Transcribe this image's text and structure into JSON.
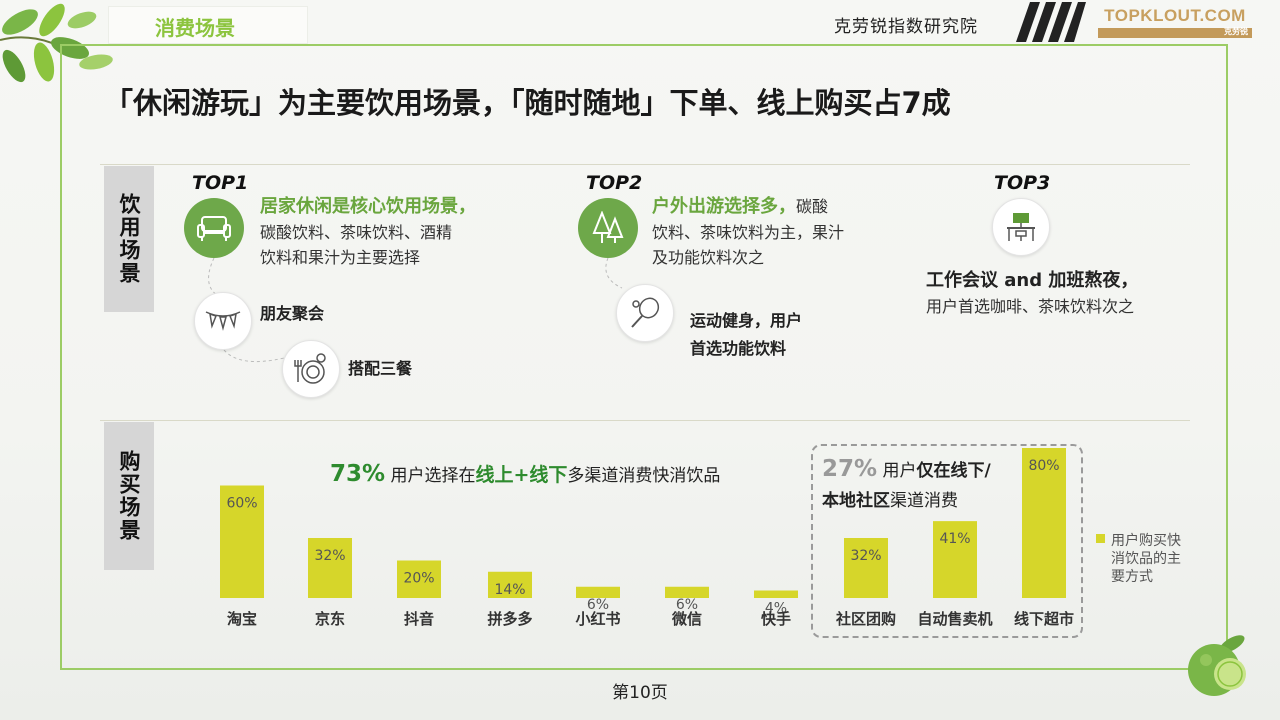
{
  "header": {
    "section": "消费场景",
    "institute": "克劳锐指数研究院",
    "logo": "TOPKLOUT.COM",
    "logo_sub": "克劳锐"
  },
  "title": "「休闲游玩」为主要饮用场景，「随时随地」下单、线上购买占7成",
  "drinking": {
    "label": "饮用场景",
    "top1": {
      "tag": "TOP1",
      "highlight": "居家休闲是核心饮用场景，",
      "line1": "碳酸饮料、茶味饮料、酒精",
      "line2": "饮料和果汁为主要选择",
      "sub1": "朋友聚会",
      "sub2": "搭配三餐",
      "icons": [
        "sofa-icon",
        "bunting-icon",
        "dining-plate-icon"
      ]
    },
    "top2": {
      "tag": "TOP2",
      "highlight": "户外出游选择多，",
      "line1_tail": "碳酸",
      "line2": "饮料、茶味饮料为主，果汁",
      "line3": "及功能饮料次之",
      "sub1_line1": "运动健身，用户",
      "sub1_line2": "首选功能饮料",
      "icons": [
        "trees-icon",
        "racket-icon"
      ]
    },
    "top3": {
      "tag": "TOP3",
      "highlight": "工作会议 and 加班熬夜，",
      "line1": "用户首选咖啡、茶味饮料次之",
      "icons": [
        "office-desk-icon"
      ]
    }
  },
  "purchase": {
    "label": "购买场景",
    "stat1_pct": "73%",
    "stat1_a": " 用户选择在",
    "stat1_b": "线上+线下",
    "stat1_c": "多渠道消费快消饮品",
    "stat2_pct": "27%",
    "stat2_a": " 用户",
    "stat2_b": "仅在线下/",
    "stat2_c": "本地社区",
    "stat2_d": "渠道消费",
    "legend": [
      "用户购买快",
      "消饮品的主",
      "要方式"
    ]
  },
  "chart_data": {
    "type": "bar",
    "categories": [
      "淘宝",
      "京东",
      "抖音",
      "拼多多",
      "小红书",
      "微信",
      "快手",
      "社区团购",
      "自动售卖机",
      "线下超市"
    ],
    "series": [
      {
        "name": "用户购买快消饮品的主要方式",
        "values": [
          60,
          32,
          20,
          14,
          6,
          6,
          4,
          32,
          41,
          80
        ]
      }
    ],
    "value_labels": [
      "60%",
      "32%",
      "20%",
      "14%",
      "6%",
      "6%",
      "4%",
      "32%",
      "41%",
      "80%"
    ],
    "ylim": [
      0,
      80
    ],
    "bar_color": "#d6d62a",
    "legend_position": "right"
  },
  "footer": {
    "page": "第10页"
  },
  "colors": {
    "accent_green": "#6ea84a",
    "frame_green": "#9ccc65",
    "bar_yellow": "#d6d62a",
    "title_green": "#8cc43e"
  }
}
